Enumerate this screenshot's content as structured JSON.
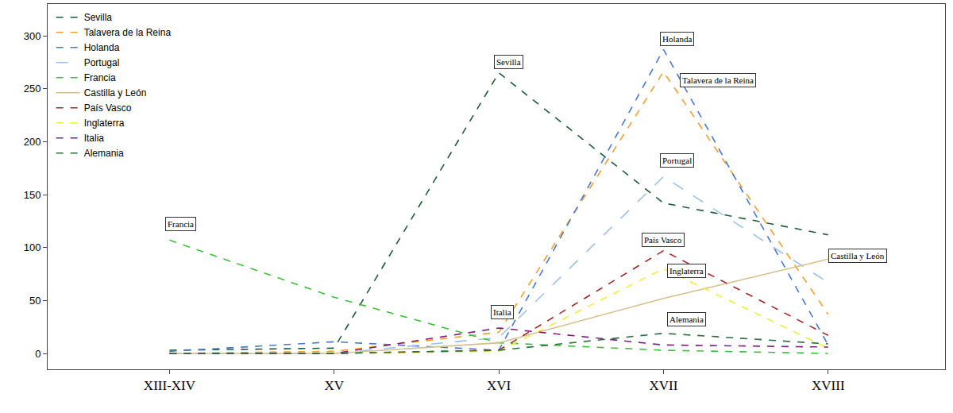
{
  "chart_data": {
    "type": "line",
    "categories": [
      "XIII-XIV",
      "XV",
      "XVI",
      "XVII",
      "XVIII"
    ],
    "ylim": [
      -15,
      330
    ],
    "yticks": [
      0,
      50,
      100,
      150,
      200,
      250,
      300
    ],
    "grid": false,
    "legend": "top-left",
    "series": [
      {
        "name": "Sevilla",
        "color": "#1d5c38",
        "line_style": "dash",
        "values": [
          3,
          5,
          265,
          142,
          112
        ]
      },
      {
        "name": "Talavera de la Reina",
        "color": "#f0a030",
        "line_style": "dash",
        "values": [
          0,
          2,
          20,
          266,
          37
        ]
      },
      {
        "name": "Holanda",
        "color": "#4a78d0",
        "line_style": "dash",
        "values": [
          2,
          11,
          3,
          287,
          8
        ]
      },
      {
        "name": "Portugal",
        "color": "#9cc3e6",
        "line_style": "longdash",
        "values": [
          0,
          0,
          15,
          167,
          67
        ]
      },
      {
        "name": "Francia",
        "color": "#3cc03c",
        "line_style": "dash",
        "values": [
          107,
          53,
          10,
          3,
          0
        ]
      },
      {
        "name": "Castilla y León",
        "color": "#d4c08c",
        "line_style": "solid",
        "values": [
          0,
          0,
          10,
          52,
          89
        ]
      },
      {
        "name": "País Vasco",
        "color": "#a0282a",
        "line_style": "dash",
        "values": [
          0,
          0,
          3,
          97,
          17
        ]
      },
      {
        "name": "Inglaterra",
        "color": "#f2ec3a",
        "line_style": "dash",
        "values": [
          0,
          0,
          2,
          80,
          5
        ]
      },
      {
        "name": "Italia",
        "color": "#7a1f7a",
        "line_style": "dash",
        "values": [
          0,
          0,
          24,
          8,
          6
        ]
      },
      {
        "name": "Alemania",
        "color": "#2e6b3e",
        "line_style": "dash",
        "values": [
          0,
          0,
          3,
          19,
          9
        ]
      }
    ],
    "annotations": [
      {
        "text": "Francia",
        "x": 0.07,
        "y": 122
      },
      {
        "text": "Sevilla",
        "x": 2.06,
        "y": 275
      },
      {
        "text": "Holanda",
        "x": 3.08,
        "y": 297
      },
      {
        "text": "Talavera de la Reina",
        "x": 3.33,
        "y": 258
      },
      {
        "text": "Portugal",
        "x": 3.08,
        "y": 182
      },
      {
        "text": "País Vasco",
        "x": 3.0,
        "y": 107
      },
      {
        "text": "Inglaterra",
        "x": 3.14,
        "y": 78
      },
      {
        "text": "Alemania",
        "x": 3.14,
        "y": 32
      },
      {
        "text": "Italia",
        "x": 2.02,
        "y": 39
      },
      {
        "text": "Castilla y León",
        "x": 4.18,
        "y": 92
      }
    ]
  }
}
